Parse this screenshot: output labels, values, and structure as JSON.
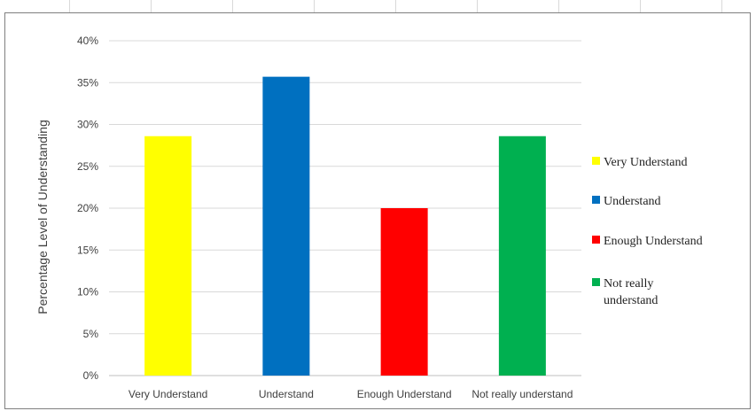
{
  "chart_data": {
    "type": "bar",
    "title": "",
    "xlabel": "",
    "ylabel": "Percentage Level of Understanding",
    "categories": [
      "Very Understand",
      "Understand",
      "Enough Understand",
      "Not really understand"
    ],
    "values": [
      28.6,
      35.7,
      20.0,
      28.6
    ],
    "colors": [
      "#ffff00",
      "#0070c0",
      "#ff0000",
      "#00b050"
    ],
    "ylim": [
      0,
      40
    ],
    "y_ticks": [
      0,
      5,
      10,
      15,
      20,
      25,
      30,
      35,
      40
    ],
    "y_tick_labels": [
      "0%",
      "5%",
      "10%",
      "15%",
      "20%",
      "25%",
      "30%",
      "35%",
      "40%"
    ],
    "grid": true,
    "legend_position": "right",
    "legend": [
      {
        "label_lines": [
          "Very Understand"
        ],
        "color": "#ffff00"
      },
      {
        "label_lines": [
          "Understand"
        ],
        "color": "#0070c0"
      },
      {
        "label_lines": [
          "Enough Understand"
        ],
        "color": "#ff0000"
      },
      {
        "label_lines": [
          "Not really",
          "understand"
        ],
        "color": "#00b050"
      }
    ]
  }
}
